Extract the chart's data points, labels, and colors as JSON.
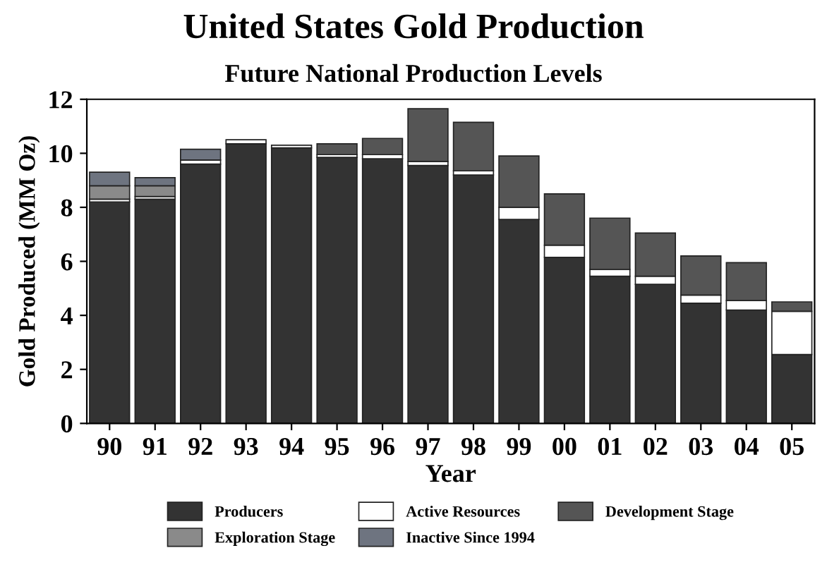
{
  "chart_data": {
    "type": "bar",
    "stacked": true,
    "title": "United States Gold Production",
    "subtitle": "Future National Production Levels",
    "xlabel": "Year",
    "ylabel": "Gold Produced (MM Oz)",
    "categories": [
      "90",
      "91",
      "92",
      "93",
      "94",
      "95",
      "96",
      "97",
      "98",
      "99",
      "00",
      "01",
      "02",
      "03",
      "04",
      "05"
    ],
    "series": [
      {
        "name": "Producers",
        "color": "#333333",
        "values": [
          8.2,
          8.3,
          9.6,
          10.35,
          10.2,
          9.85,
          9.8,
          9.55,
          9.2,
          7.55,
          6.15,
          5.45,
          5.15,
          4.45,
          4.2,
          2.55
        ]
      },
      {
        "name": "Active Resources",
        "color": "#ffffff",
        "values": [
          0.1,
          0.1,
          0.15,
          0.15,
          0.1,
          0.1,
          0.15,
          0.15,
          0.15,
          0.45,
          0.45,
          0.25,
          0.3,
          0.3,
          0.35,
          1.6
        ]
      },
      {
        "name": "Development Stage",
        "color": "#555555",
        "values": [
          null,
          null,
          null,
          null,
          null,
          0.4,
          0.6,
          1.95,
          1.8,
          1.9,
          1.9,
          1.9,
          1.6,
          1.45,
          1.4,
          0.35
        ]
      },
      {
        "name": "Exploration Stage",
        "color": "#8a8a8a",
        "values": [
          0.5,
          0.4,
          null,
          null,
          null,
          null,
          null,
          null,
          null,
          null,
          null,
          null,
          null,
          null,
          null,
          null
        ]
      },
      {
        "name": "Inactive Since 1994",
        "color": "#6e7480",
        "values": [
          0.5,
          0.3,
          0.4,
          null,
          null,
          null,
          null,
          null,
          null,
          null,
          null,
          null,
          null,
          null,
          null,
          null
        ]
      }
    ],
    "ylim": [
      0,
      12
    ],
    "yticks": [
      0,
      2,
      4,
      6,
      8,
      10,
      12
    ],
    "legend": "bottom",
    "grid": false
  }
}
